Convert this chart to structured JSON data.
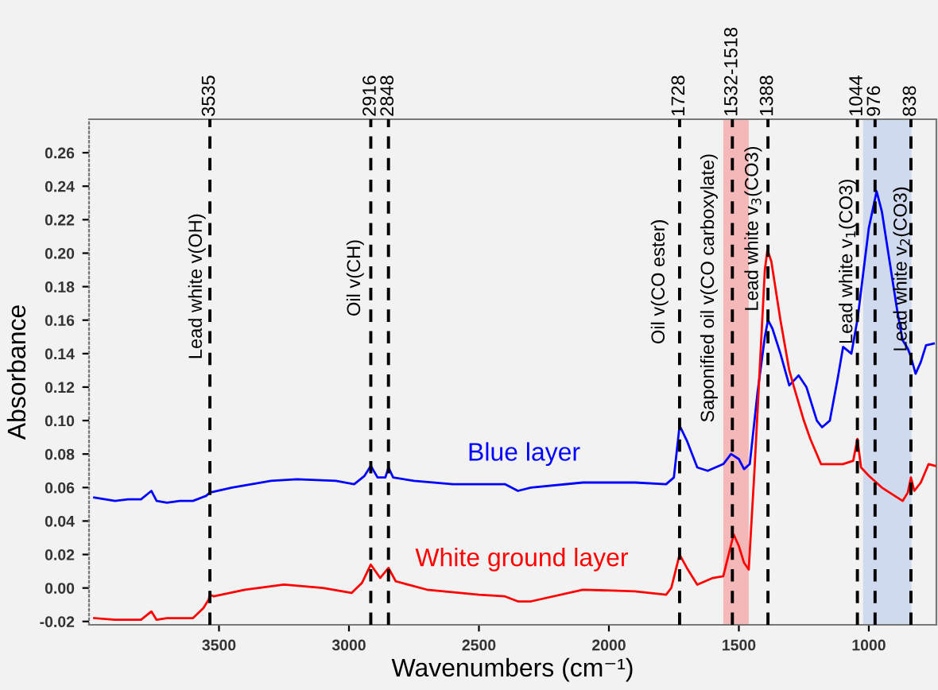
{
  "chart_data": {
    "type": "line",
    "xlabel": "Wavenumbers (cm⁻¹)",
    "ylabel": "Absorbance",
    "xlim": [
      4000,
      740
    ],
    "xticks": [
      3500,
      3000,
      2500,
      2000,
      1500,
      1000
    ],
    "ylim": [
      -0.022,
      0.28
    ],
    "yticks": [
      {
        "value": -0.02,
        "label": "-0.02"
      },
      {
        "value": 0.0,
        "label": "0.00"
      },
      {
        "value": 0.02,
        "label": "0.02"
      },
      {
        "value": 0.04,
        "label": "0.04"
      },
      {
        "value": 0.06,
        "label": "0.06"
      },
      {
        "value": 0.08,
        "label": "0.08"
      },
      {
        "value": 0.1,
        "label": "0.10"
      },
      {
        "value": 0.12,
        "label": "0.12"
      },
      {
        "value": 0.14,
        "label": "0.14"
      },
      {
        "value": 0.16,
        "label": "0.16"
      },
      {
        "value": 0.18,
        "label": "0.18"
      },
      {
        "value": 0.2,
        "label": "0.20"
      },
      {
        "value": 0.22,
        "label": "0.22"
      },
      {
        "value": 0.24,
        "label": "0.24"
      },
      {
        "value": 0.26,
        "label": "0.26"
      }
    ],
    "grid": false,
    "legend": false,
    "marker": "none",
    "line_style": "solid",
    "series": [
      {
        "name": "Blue layer",
        "color": "#0000ff",
        "x": [
          3980,
          3900,
          3850,
          3800,
          3760,
          3740,
          3700,
          3650,
          3600,
          3550,
          3535,
          3450,
          3300,
          3200,
          3050,
          2980,
          2940,
          2916,
          2890,
          2860,
          2848,
          2830,
          2750,
          2600,
          2500,
          2400,
          2350,
          2300,
          2100,
          1900,
          1780,
          1750,
          1728,
          1700,
          1660,
          1620,
          1560,
          1530,
          1500,
          1480,
          1458,
          1428,
          1400,
          1388,
          1371,
          1340,
          1306,
          1270,
          1240,
          1200,
          1180,
          1150,
          1120,
          1099,
          1067,
          1043,
          1020,
          1000,
          970,
          950,
          920,
          890,
          870,
          850,
          838,
          820,
          800,
          780,
          750
        ],
        "values": [
          0.054,
          0.052,
          0.053,
          0.053,
          0.058,
          0.052,
          0.051,
          0.052,
          0.052,
          0.055,
          0.057,
          0.06,
          0.064,
          0.065,
          0.064,
          0.062,
          0.067,
          0.073,
          0.066,
          0.066,
          0.072,
          0.066,
          0.064,
          0.062,
          0.062,
          0.062,
          0.058,
          0.06,
          0.063,
          0.063,
          0.062,
          0.066,
          0.097,
          0.088,
          0.072,
          0.07,
          0.074,
          0.08,
          0.077,
          0.071,
          0.074,
          0.117,
          0.15,
          0.16,
          0.155,
          0.14,
          0.121,
          0.127,
          0.12,
          0.1,
          0.096,
          0.1,
          0.125,
          0.144,
          0.14,
          0.161,
          0.19,
          0.215,
          0.237,
          0.225,
          0.195,
          0.165,
          0.148,
          0.143,
          0.138,
          0.128,
          0.135,
          0.145,
          0.146
        ]
      },
      {
        "name": "White ground layer",
        "color": "#ff0000",
        "x": [
          3980,
          3900,
          3800,
          3760,
          3740,
          3700,
          3600,
          3560,
          3540,
          3535,
          3520,
          3400,
          3250,
          3100,
          2990,
          2950,
          2916,
          2880,
          2848,
          2820,
          2700,
          2500,
          2400,
          2350,
          2300,
          2100,
          1900,
          1780,
          1760,
          1728,
          1700,
          1660,
          1600,
          1560,
          1520,
          1500,
          1480,
          1462,
          1440,
          1420,
          1400,
          1390,
          1375,
          1340,
          1306,
          1286,
          1250,
          1225,
          1184,
          1100,
          1060,
          1044,
          1030,
          1000,
          950,
          900,
          870,
          850,
          838,
          825,
          800,
          770,
          745
        ],
        "values": [
          -0.018,
          -0.019,
          -0.019,
          -0.014,
          -0.019,
          -0.018,
          -0.018,
          -0.012,
          -0.007,
          -0.004,
          -0.005,
          -0.001,
          0.002,
          0.0,
          -0.003,
          0.003,
          0.014,
          0.006,
          0.012,
          0.004,
          -0.001,
          -0.004,
          -0.005,
          -0.008,
          -0.008,
          -0.001,
          -0.002,
          -0.004,
          0.0,
          0.02,
          0.012,
          0.002,
          0.006,
          0.007,
          0.032,
          0.025,
          0.015,
          0.011,
          0.07,
          0.13,
          0.19,
          0.202,
          0.195,
          0.16,
          0.13,
          0.119,
          0.1,
          0.089,
          0.074,
          0.074,
          0.076,
          0.089,
          0.072,
          0.067,
          0.06,
          0.055,
          0.052,
          0.057,
          0.066,
          0.058,
          0.063,
          0.074,
          0.073
        ]
      }
    ],
    "ref_lines": [
      {
        "axis": "x",
        "value": 3535,
        "label": "3535",
        "color": "#000000",
        "line_style": "dashed"
      },
      {
        "axis": "x",
        "value": 2916,
        "label": "2916",
        "color": "#000000",
        "line_style": "dashed"
      },
      {
        "axis": "x",
        "value": 2848,
        "label": "2848",
        "color": "#000000",
        "line_style": "dashed"
      },
      {
        "axis": "x",
        "value": 1728,
        "label": "1728",
        "color": "#000000",
        "line_style": "dashed"
      },
      {
        "axis": "x",
        "value": 1525,
        "color": "#000000",
        "line_style": "dashed"
      },
      {
        "axis": "x",
        "value": 1388,
        "label": "1388",
        "color": "#000000",
        "line_style": "dashed"
      },
      {
        "axis": "x",
        "value": 1044,
        "label": "1044",
        "color": "#000000",
        "line_style": "dashed"
      },
      {
        "axis": "x",
        "value": 976,
        "label": "976",
        "color": "#000000",
        "line_style": "dashed"
      },
      {
        "axis": "x",
        "value": 838,
        "label": "838",
        "color": "#000000",
        "line_style": "dashed"
      }
    ],
    "bands": [
      {
        "axis": "x",
        "from": 1560,
        "to": 1462,
        "color": "#f4b8b8"
      },
      {
        "axis": "x",
        "from": 1022,
        "to": 836,
        "color": "#cfdaee"
      }
    ],
    "annotations": [
      "1532-1518",
      "Lead white v(OH)",
      "Oil v(CH)",
      "Oil v(CO ester)",
      "Saponified oil v(CO carboxylate)",
      "Lead white v$_{3}$(CO3)",
      "Lead white v$_{1}$(CO3)",
      "Lead white v$_{2}$(CO3)"
    ]
  }
}
